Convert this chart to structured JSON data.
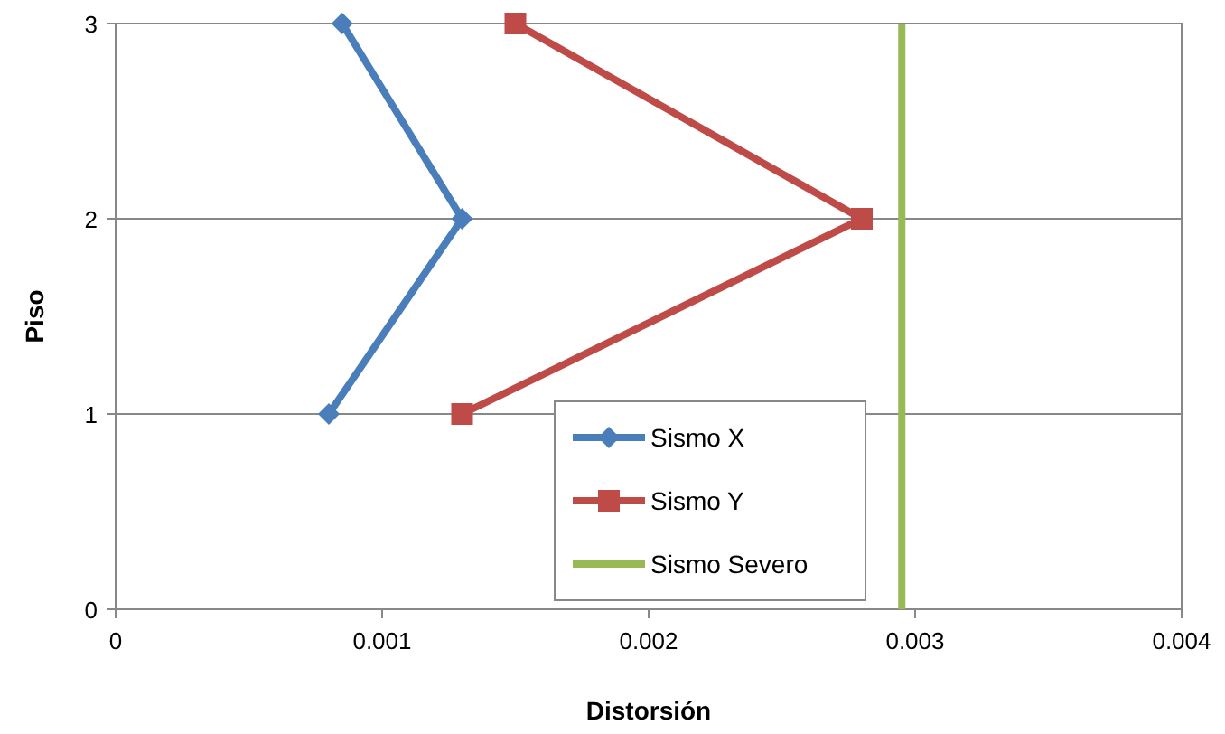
{
  "chart_data": {
    "type": "line",
    "xlabel": "Distorsión",
    "ylabel": "Piso",
    "xlim": [
      0,
      0.004
    ],
    "xticks": [
      0,
      0.001,
      0.002,
      0.003,
      0.004
    ],
    "ylim": [
      0,
      3
    ],
    "yticks": [
      0,
      1,
      2,
      3
    ],
    "grid": "y",
    "legend": "bottom",
    "series": [
      {
        "name": "Sismo X",
        "color": "#4a7ebb",
        "marker": "diamond",
        "x": [
          0.0008,
          0.0013,
          0.00085
        ],
        "values": [
          1,
          2,
          3
        ]
      },
      {
        "name": "Sismo Y",
        "color": "#be4b48",
        "marker": "square",
        "x": [
          0.0013,
          0.0028,
          0.0015
        ],
        "values": [
          1,
          2,
          3
        ]
      },
      {
        "name": "Sismo Severo",
        "color": "#98b954",
        "marker": "none",
        "x": [
          0.00295,
          0.00295
        ],
        "values": [
          0,
          3
        ]
      }
    ]
  }
}
